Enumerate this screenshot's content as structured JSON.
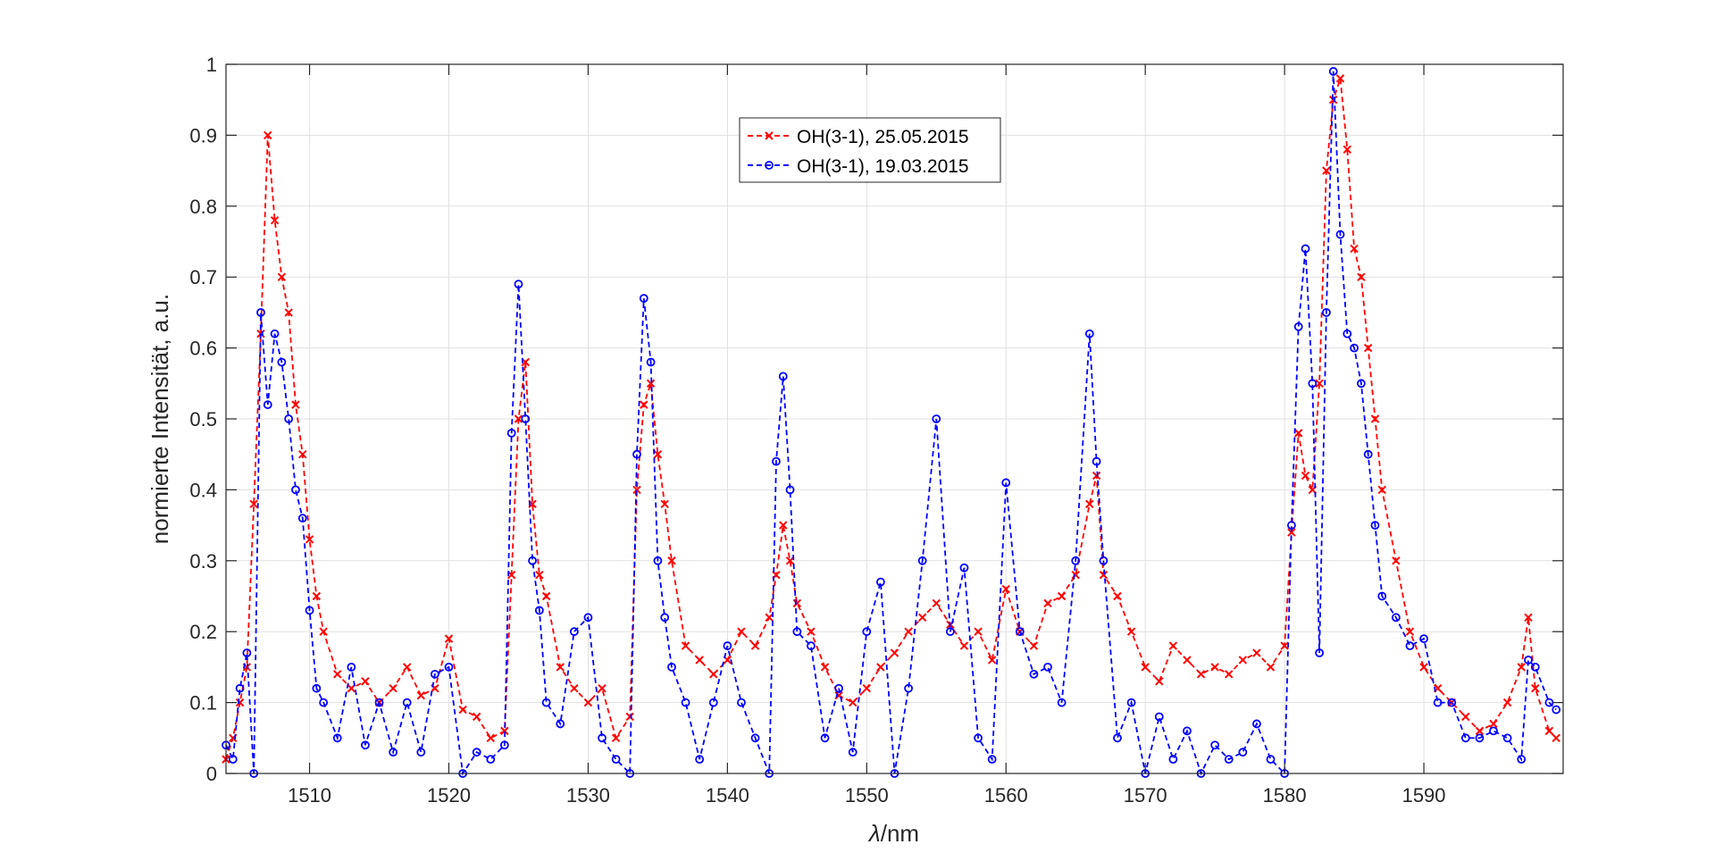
{
  "chart_data": {
    "type": "line",
    "title": "",
    "xlabel_symbol": "λ",
    "xlabel_unit": "/nm",
    "ylabel": "normierte Intensität, a.u.",
    "xlim": [
      1504,
      1600
    ],
    "ylim": [
      0,
      1
    ],
    "xticks": [
      1510,
      1520,
      1530,
      1540,
      1550,
      1560,
      1570,
      1580,
      1590
    ],
    "yticks": [
      0,
      0.1,
      0.2,
      0.3,
      0.4,
      0.5,
      0.6,
      0.7,
      0.8,
      0.9,
      1
    ],
    "ytick_labels": [
      "0",
      "0.1",
      "0.2",
      "0.3",
      "0.4",
      "0.5",
      "0.6",
      "0.7",
      "0.8",
      "0.9",
      "1"
    ],
    "grid": true,
    "legend_position": "top-center",
    "series": [
      {
        "name": "OH(3-1), 25.05.2015",
        "color": "#ff0000",
        "marker": "x",
        "line_style": "dashed",
        "x": [
          1504.0,
          1504.5,
          1505.0,
          1505.5,
          1506.0,
          1506.5,
          1507.0,
          1507.5,
          1508.0,
          1508.5,
          1509.0,
          1509.5,
          1510.0,
          1510.5,
          1511.0,
          1512.0,
          1513.0,
          1514.0,
          1515.0,
          1516.0,
          1517.0,
          1518.0,
          1519.0,
          1520.0,
          1521.0,
          1522.0,
          1523.0,
          1524.0,
          1524.5,
          1525.0,
          1525.5,
          1526.0,
          1526.5,
          1527.0,
          1528.0,
          1529.0,
          1530.0,
          1531.0,
          1532.0,
          1533.0,
          1533.5,
          1534.0,
          1534.5,
          1535.0,
          1535.5,
          1536.0,
          1537.0,
          1538.0,
          1539.0,
          1540.0,
          1541.0,
          1542.0,
          1543.0,
          1543.5,
          1544.0,
          1544.5,
          1545.0,
          1546.0,
          1547.0,
          1548.0,
          1549.0,
          1550.0,
          1551.0,
          1552.0,
          1553.0,
          1554.0,
          1555.0,
          1556.0,
          1557.0,
          1558.0,
          1559.0,
          1560.0,
          1561.0,
          1562.0,
          1563.0,
          1564.0,
          1565.0,
          1566.0,
          1566.5,
          1567.0,
          1568.0,
          1569.0,
          1570.0,
          1571.0,
          1572.0,
          1573.0,
          1574.0,
          1575.0,
          1576.0,
          1577.0,
          1578.0,
          1579.0,
          1580.0,
          1580.5,
          1581.0,
          1581.5,
          1582.0,
          1582.5,
          1583.0,
          1583.5,
          1584.0,
          1584.5,
          1585.0,
          1585.5,
          1586.0,
          1586.5,
          1587.0,
          1588.0,
          1589.0,
          1590.0,
          1591.0,
          1592.0,
          1593.0,
          1594.0,
          1595.0,
          1596.0,
          1597.0,
          1597.5,
          1598.0,
          1599.0,
          1599.5
        ],
        "values": [
          0.02,
          0.05,
          0.1,
          0.15,
          0.38,
          0.62,
          0.9,
          0.78,
          0.7,
          0.65,
          0.52,
          0.45,
          0.33,
          0.25,
          0.2,
          0.14,
          0.12,
          0.13,
          0.1,
          0.12,
          0.15,
          0.11,
          0.12,
          0.19,
          0.09,
          0.08,
          0.05,
          0.06,
          0.28,
          0.5,
          0.58,
          0.38,
          0.28,
          0.25,
          0.15,
          0.12,
          0.1,
          0.12,
          0.05,
          0.08,
          0.4,
          0.52,
          0.55,
          0.45,
          0.38,
          0.3,
          0.18,
          0.16,
          0.14,
          0.16,
          0.2,
          0.18,
          0.22,
          0.28,
          0.35,
          0.3,
          0.24,
          0.2,
          0.15,
          0.11,
          0.1,
          0.12,
          0.15,
          0.17,
          0.2,
          0.22,
          0.24,
          0.21,
          0.18,
          0.2,
          0.16,
          0.26,
          0.2,
          0.18,
          0.24,
          0.25,
          0.28,
          0.38,
          0.42,
          0.28,
          0.25,
          0.2,
          0.15,
          0.13,
          0.18,
          0.16,
          0.14,
          0.15,
          0.14,
          0.16,
          0.17,
          0.15,
          0.18,
          0.34,
          0.48,
          0.42,
          0.4,
          0.55,
          0.85,
          0.95,
          0.98,
          0.88,
          0.74,
          0.7,
          0.6,
          0.5,
          0.4,
          0.3,
          0.2,
          0.15,
          0.12,
          0.1,
          0.08,
          0.06,
          0.07,
          0.1,
          0.15,
          0.22,
          0.12,
          0.06,
          0.05
        ]
      },
      {
        "name": "OH(3-1), 19.03.2015",
        "color": "#0000ff",
        "marker": "o",
        "line_style": "dashed",
        "x": [
          1504.0,
          1504.5,
          1505.0,
          1505.5,
          1506.0,
          1506.5,
          1507.0,
          1507.5,
          1508.0,
          1508.5,
          1509.0,
          1509.5,
          1510.0,
          1510.5,
          1511.0,
          1512.0,
          1513.0,
          1514.0,
          1515.0,
          1516.0,
          1517.0,
          1518.0,
          1519.0,
          1520.0,
          1521.0,
          1522.0,
          1523.0,
          1524.0,
          1524.5,
          1525.0,
          1525.5,
          1526.0,
          1526.5,
          1527.0,
          1528.0,
          1529.0,
          1530.0,
          1531.0,
          1532.0,
          1533.0,
          1533.5,
          1534.0,
          1534.5,
          1535.0,
          1535.5,
          1536.0,
          1537.0,
          1538.0,
          1539.0,
          1540.0,
          1541.0,
          1542.0,
          1543.0,
          1543.5,
          1544.0,
          1544.5,
          1545.0,
          1546.0,
          1547.0,
          1548.0,
          1549.0,
          1550.0,
          1551.0,
          1552.0,
          1553.0,
          1554.0,
          1555.0,
          1556.0,
          1557.0,
          1558.0,
          1559.0,
          1560.0,
          1561.0,
          1562.0,
          1563.0,
          1564.0,
          1565.0,
          1566.0,
          1566.5,
          1567.0,
          1568.0,
          1569.0,
          1570.0,
          1571.0,
          1572.0,
          1573.0,
          1574.0,
          1575.0,
          1576.0,
          1577.0,
          1578.0,
          1579.0,
          1580.0,
          1580.5,
          1581.0,
          1581.5,
          1582.0,
          1582.5,
          1583.0,
          1583.5,
          1584.0,
          1584.5,
          1585.0,
          1585.5,
          1586.0,
          1586.5,
          1587.0,
          1588.0,
          1589.0,
          1590.0,
          1591.0,
          1592.0,
          1593.0,
          1594.0,
          1595.0,
          1596.0,
          1597.0,
          1597.5,
          1598.0,
          1599.0,
          1599.5
        ],
        "values": [
          0.04,
          0.02,
          0.12,
          0.17,
          0.0,
          0.65,
          0.52,
          0.62,
          0.58,
          0.5,
          0.4,
          0.36,
          0.23,
          0.12,
          0.1,
          0.05,
          0.15,
          0.04,
          0.1,
          0.03,
          0.1,
          0.03,
          0.14,
          0.15,
          0.0,
          0.03,
          0.02,
          0.04,
          0.48,
          0.69,
          0.5,
          0.3,
          0.23,
          0.1,
          0.07,
          0.2,
          0.22,
          0.05,
          0.02,
          0.0,
          0.45,
          0.67,
          0.58,
          0.3,
          0.22,
          0.15,
          0.1,
          0.02,
          0.1,
          0.18,
          0.1,
          0.05,
          0.0,
          0.44,
          0.56,
          0.4,
          0.2,
          0.18,
          0.05,
          0.12,
          0.03,
          0.2,
          0.27,
          0.0,
          0.12,
          0.3,
          0.5,
          0.2,
          0.29,
          0.05,
          0.02,
          0.41,
          0.2,
          0.14,
          0.15,
          0.1,
          0.3,
          0.62,
          0.44,
          0.3,
          0.05,
          0.1,
          0.0,
          0.08,
          0.02,
          0.06,
          0.0,
          0.04,
          0.02,
          0.03,
          0.07,
          0.02,
          0.0,
          0.35,
          0.63,
          0.74,
          0.55,
          0.17,
          0.65,
          0.99,
          0.76,
          0.62,
          0.6,
          0.55,
          0.45,
          0.35,
          0.25,
          0.22,
          0.18,
          0.19,
          0.1,
          0.1,
          0.05,
          0.05,
          0.06,
          0.05,
          0.02,
          0.16,
          0.15,
          0.1,
          0.09
        ]
      }
    ]
  }
}
